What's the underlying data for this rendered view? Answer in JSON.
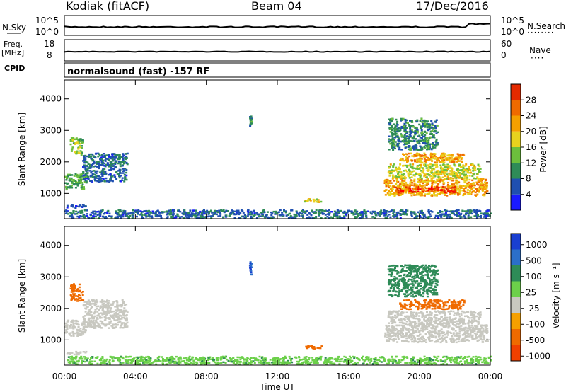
{
  "header": {
    "station": "Kodiak (fitACF)",
    "beam": "Beam 04",
    "date": "17/Dec/2016"
  },
  "strips": {
    "noise": {
      "left_label": "N.Sky",
      "right_label": "N.Search",
      "ticks": [
        "10^5",
        "10^0"
      ]
    },
    "freq": {
      "left_label_line1": "Freq.",
      "left_label_line2": "[MHz]",
      "left_ticks": [
        "18",
        "8"
      ],
      "right_label": "Nave",
      "right_ticks": [
        "60",
        "0"
      ]
    },
    "cpid": {
      "left_label": "CPID",
      "text": "normalsound (fast) -157 RF"
    }
  },
  "colors": {
    "power": [
      "#1a1aff",
      "#1f4fb0",
      "#2e8b57",
      "#6cbf3c",
      "#e8d21e",
      "#f5a000",
      "#ef6a00",
      "#e42a00",
      "#ff0000"
    ],
    "velocity": [
      "#1a3fd0",
      "#2b6fc9",
      "#2e8b57",
      "#6cd04a",
      "#c8c8c0",
      "#f5a000",
      "#ef6a00",
      "#f04000",
      "#ff1010"
    ]
  },
  "chart_data": [
    {
      "type": "heatmap",
      "name": "power",
      "xlabel": "",
      "ylabel": "Slant Range [km]",
      "x_ticks": [
        "00:00",
        "04:00",
        "08:00",
        "12:00",
        "16:00",
        "20:00",
        "00:00"
      ],
      "xlim": [
        0,
        24
      ],
      "ylim": [
        200,
        4600
      ],
      "y_ticks": [
        "1000",
        "2000",
        "3000",
        "4000"
      ],
      "colorbar": {
        "label": "Power [dB]",
        "ticks": [
          "4",
          "8",
          "12",
          "16",
          "20",
          "24",
          "28"
        ],
        "range": [
          0,
          30
        ]
      },
      "patches": [
        {
          "t": [
            0.0,
            1.2
          ],
          "r": [
            1150,
            1650
          ],
          "level": 10
        },
        {
          "t": [
            1.0,
            3.5
          ],
          "r": [
            1400,
            2300
          ],
          "level": 6
        },
        {
          "t": [
            0.3,
            1.0
          ],
          "r": [
            2250,
            2800
          ],
          "level": 12
        },
        {
          "t": [
            0.1,
            1.2
          ],
          "r": [
            560,
            680
          ],
          "level": 4
        },
        {
          "t": [
            13.5,
            14.5
          ],
          "r": [
            750,
            850
          ],
          "level": 14
        },
        {
          "t": [
            10.4,
            10.5
          ],
          "r": [
            3100,
            3500
          ],
          "level": 8
        },
        {
          "t": [
            18.0,
            23.8
          ],
          "r": [
            950,
            1500
          ],
          "level": 18
        },
        {
          "t": [
            18.6,
            22.0
          ],
          "r": [
            1050,
            1250
          ],
          "level": 24
        },
        {
          "t": [
            18.2,
            23.4
          ],
          "r": [
            1500,
            1950
          ],
          "level": 14
        },
        {
          "t": [
            18.8,
            22.5
          ],
          "r": [
            2000,
            2300
          ],
          "level": 18
        },
        {
          "t": [
            18.2,
            21.0
          ],
          "r": [
            2400,
            3400
          ],
          "level": 8
        },
        {
          "t": [
            0.0,
            24.0
          ],
          "r": [
            250,
            500
          ],
          "level": 6
        }
      ]
    },
    {
      "type": "heatmap",
      "name": "velocity",
      "xlabel": "Time UT",
      "ylabel": "Slant Range [km]",
      "x_ticks": [
        "00:00",
        "04:00",
        "08:00",
        "12:00",
        "16:00",
        "20:00",
        "00:00"
      ],
      "xlim": [
        0,
        24
      ],
      "ylim": [
        200,
        4600
      ],
      "y_ticks": [
        "1000",
        "2000",
        "3000",
        "4000"
      ],
      "colorbar": {
        "label": "Velocity [m s⁻¹]",
        "ticks": [
          "1000",
          "500",
          "100",
          "25",
          "-25",
          "-100",
          "-500",
          "-1000"
        ]
      },
      "patches": [
        {
          "t": [
            0.0,
            1.2
          ],
          "r": [
            1150,
            1650
          ],
          "level": -10
        },
        {
          "t": [
            1.0,
            3.5
          ],
          "r": [
            1400,
            2300
          ],
          "level": 0
        },
        {
          "t": [
            0.3,
            1.0
          ],
          "r": [
            2250,
            2800
          ],
          "level": -200
        },
        {
          "t": [
            0.1,
            1.2
          ],
          "r": [
            560,
            680
          ],
          "level": 0
        },
        {
          "t": [
            13.5,
            14.5
          ],
          "r": [
            750,
            850
          ],
          "level": -80
        },
        {
          "t": [
            10.4,
            10.5
          ],
          "r": [
            3100,
            3500
          ],
          "level": 600
        },
        {
          "t": [
            18.0,
            23.8
          ],
          "r": [
            950,
            1500
          ],
          "level": 0
        },
        {
          "t": [
            18.2,
            23.4
          ],
          "r": [
            1500,
            1950
          ],
          "level": 0
        },
        {
          "t": [
            18.8,
            22.5
          ],
          "r": [
            2000,
            2300
          ],
          "level": -200
        },
        {
          "t": [
            18.2,
            21.0
          ],
          "r": [
            2400,
            3400
          ],
          "level": 80
        },
        {
          "t": [
            0.0,
            24.0
          ],
          "r": [
            250,
            500
          ],
          "level": 50
        }
      ]
    }
  ]
}
